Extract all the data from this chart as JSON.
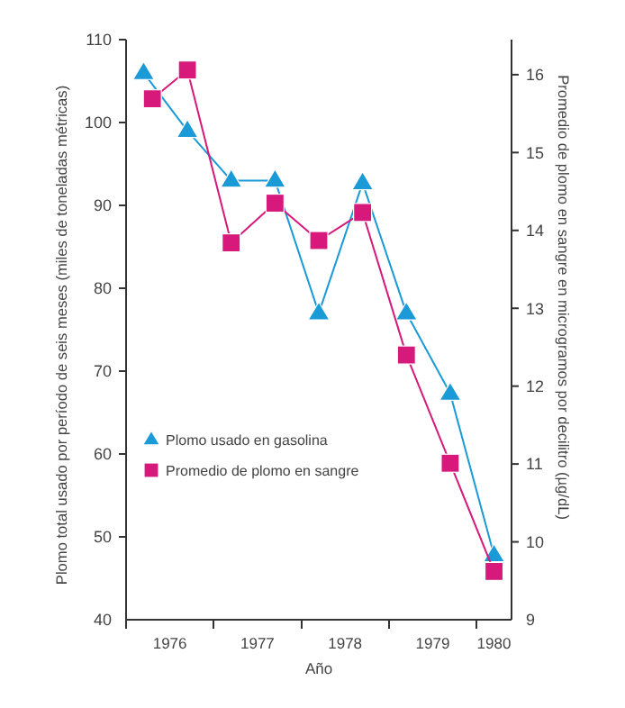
{
  "chart_data": {
    "type": "line",
    "xlabel": "Año",
    "ylabel": "Plomo total usado por período de seis meses (miles de toneladas métricas)",
    "y2label": "Promedio de plomo en sangre en microgramos por decilitro (µg/dL)",
    "xlim": [
      1976,
      1980.4
    ],
    "xticks": [
      {
        "value": 1976,
        "label": null
      },
      {
        "value": 1976.5,
        "label": "1976"
      },
      {
        "value": 1977,
        "label": null
      },
      {
        "value": 1977.5,
        "label": "1977"
      },
      {
        "value": 1978,
        "label": null
      },
      {
        "value": 1978.5,
        "label": "1978"
      },
      {
        "value": 1979,
        "label": null
      },
      {
        "value": 1979.5,
        "label": "1979"
      },
      {
        "value": 1980,
        "label": null
      },
      {
        "value": 1980.2,
        "label": "1980"
      }
    ],
    "ylim": [
      40,
      110
    ],
    "yticks": [
      40,
      50,
      60,
      70,
      80,
      90,
      100,
      110
    ],
    "y2lim": [
      9,
      16.45
    ],
    "y2ticks": [
      9,
      10,
      11,
      12,
      13,
      14,
      15,
      16
    ],
    "legend": "bottom left",
    "grid": false,
    "line_style": "solid",
    "series": [
      {
        "name": "Plomo usado en gasolina",
        "color": "#1a9ad6",
        "marker": "triangle",
        "x": [
          1976.2,
          1976.7,
          1977.2,
          1977.7,
          1978.2,
          1978.7,
          1979.2,
          1979.7,
          1980.2
        ],
        "values": [
          106,
          99,
          93,
          93,
          77,
          92.7,
          77,
          67.3,
          47.8
        ]
      },
      {
        "name": "Promedio de plomo en sangre",
        "color": "#d6197a",
        "marker": "square",
        "axis": "y2",
        "x": [
          1976.3,
          1976.7,
          1977.2,
          1977.7,
          1978.2,
          1978.7,
          1979.2,
          1979.7,
          1980.2
        ],
        "values": [
          15.69,
          16.06,
          13.84,
          14.35,
          13.87,
          14.23,
          12.4,
          11.01,
          9.62
        ]
      }
    ]
  }
}
